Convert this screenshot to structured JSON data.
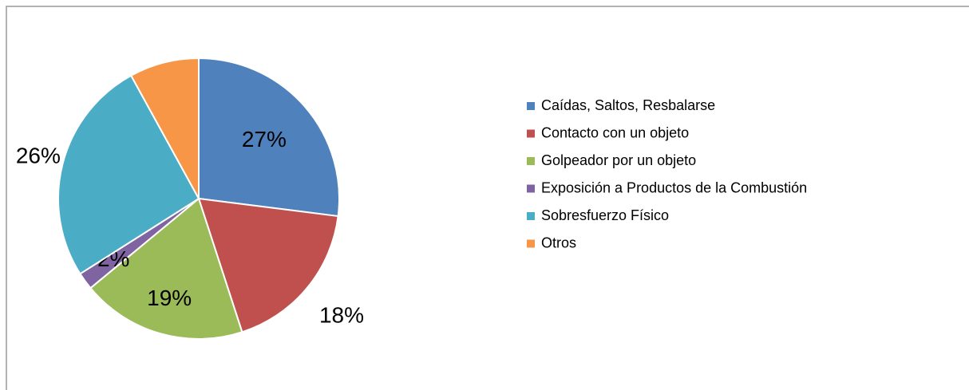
{
  "chart_data": {
    "type": "pie",
    "categories": [
      "Caídas, Saltos, Resbalarse",
      "Contacto con un objeto",
      "Golpeador por un objeto",
      "Exposición a Productos de la Combustión",
      "Sobresfuerzo Físico",
      "Otros"
    ],
    "values": [
      27,
      18,
      19,
      2,
      26,
      8
    ],
    "value_labels": [
      "27%",
      "18%",
      "19%",
      "2%",
      "26%",
      null
    ],
    "colors": [
      "#4f81bd",
      "#c0504d",
      "#9bbb59",
      "#8064a2",
      "#4bacc6",
      "#f79646"
    ],
    "legend": "right"
  }
}
